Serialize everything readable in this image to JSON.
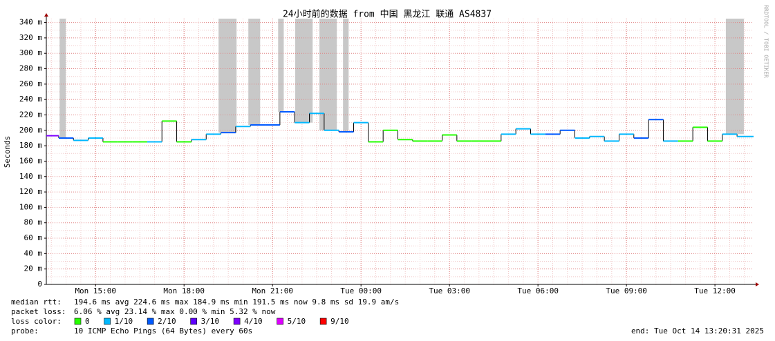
{
  "chart_data": {
    "type": "step",
    "title": "24小时前的数据 from 中国 黑龙江 联通 AS4837",
    "y_label": "Seconds",
    "watermark": "RRDTOOL / TOBI OETIKER",
    "xlim": [
      13.33,
      37.31
    ],
    "xticks": [
      {
        "value": 15,
        "label": "Mon 15:00"
      },
      {
        "value": 18,
        "label": "Mon 18:00"
      },
      {
        "value": 21,
        "label": "Mon 21:00"
      },
      {
        "value": 24,
        "label": "Tue 00:00"
      },
      {
        "value": 27,
        "label": "Tue 03:00"
      },
      {
        "value": 30,
        "label": "Tue 06:00"
      },
      {
        "value": 33,
        "label": "Tue 09:00"
      },
      {
        "value": 36,
        "label": "Tue 12:00"
      }
    ],
    "ylim": [
      0,
      345
    ],
    "yticks": [
      0,
      {
        "value": 20,
        "label": "20 m"
      },
      {
        "value": 40,
        "label": "40 m"
      },
      {
        "value": 60,
        "label": "60 m"
      },
      {
        "value": 80,
        "label": "80 m"
      },
      {
        "value": 100,
        "label": "100 m"
      },
      {
        "value": 120,
        "label": "120 m"
      },
      {
        "value": 140,
        "label": "140 m"
      },
      {
        "value": 160,
        "label": "160 m"
      },
      {
        "value": 180,
        "label": "180 m"
      },
      {
        "value": 200,
        "label": "200 m"
      },
      {
        "value": 220,
        "label": "220 m"
      },
      {
        "value": 240,
        "label": "240 m"
      },
      {
        "value": 260,
        "label": "260 m"
      },
      {
        "value": 280,
        "label": "280 m"
      },
      {
        "value": 300,
        "label": "300 m"
      },
      {
        "value": 320,
        "label": "320 m"
      },
      {
        "value": 340,
        "label": "340 m"
      }
    ],
    "grid": true,
    "x": [
      13.5,
      14,
      14.5,
      15,
      15.5,
      16,
      16.5,
      17,
      17.5,
      18,
      18.5,
      19,
      19.5,
      20,
      20.5,
      21,
      21.5,
      22,
      22.5,
      23,
      23.5,
      24,
      24.5,
      25,
      25.5,
      26,
      26.5,
      27,
      27.5,
      28,
      28.5,
      29,
      29.5,
      30,
      30.5,
      31,
      31.5,
      32,
      32.5,
      33,
      33.5,
      34,
      34.5,
      35,
      35.5,
      36,
      36.5,
      37
    ],
    "values": [
      193,
      190,
      187,
      190,
      185,
      185,
      185,
      185,
      212,
      185,
      188,
      195,
      197,
      205,
      207,
      207,
      224,
      210,
      222,
      200,
      198,
      210,
      185,
      200,
      188,
      186,
      186,
      194,
      186,
      186,
      186,
      195,
      202,
      195,
      195,
      200,
      190,
      192,
      186,
      195,
      190,
      214,
      186,
      186,
      204,
      186,
      195,
      192
    ],
    "point_colors": [
      "#7e00ff",
      "#0059ff",
      "#00b8ff",
      "#00b8ff",
      "#26ff00",
      "#26ff00",
      "#26ff00",
      "#00b8ff",
      "#26ff00",
      "#26ff00",
      "#00b8ff",
      "#00b8ff",
      "#0059ff",
      "#00b8ff",
      "#0059ff",
      "#0059ff",
      "#0059ff",
      "#00b8ff",
      "#00b8ff",
      "#00b8ff",
      "#0059ff",
      "#00b8ff",
      "#26ff00",
      "#26ff00",
      "#26ff00",
      "#26ff00",
      "#26ff00",
      "#26ff00",
      "#26ff00",
      "#26ff00",
      "#26ff00",
      "#00b8ff",
      "#00b8ff",
      "#00b8ff",
      "#0059ff",
      "#0059ff",
      "#00b8ff",
      "#00b8ff",
      "#00b8ff",
      "#00b8ff",
      "#0059ff",
      "#0059ff",
      "#00b8ff",
      "#26ff00",
      "#26ff00",
      "#26ff00",
      "#00b8ff",
      "#00b8ff"
    ],
    "loss_spans": [
      [
        13.78,
        13.99
      ],
      [
        19.17,
        19.78
      ],
      [
        20.18,
        20.58
      ],
      [
        21.19,
        21.38
      ],
      [
        21.77,
        22.36
      ],
      [
        22.59,
        23.18
      ],
      [
        23.39,
        23.58
      ],
      [
        36.37,
        36.98
      ]
    ],
    "stats": [
      {
        "label": "median rtt:",
        "text": "194.6 ms avg  224.6 ms max  184.9 ms min  191.5 ms now  9.8 ms sd  19.9   am/s"
      },
      {
        "label": "packet loss:",
        "text": "6.06 % avg  23.14 % max  0.00 % min  5.32 % now"
      }
    ],
    "loss_legend_label": "loss color:",
    "loss_legend": [
      {
        "label": "0",
        "color": "#26ff00"
      },
      {
        "label": "1/10",
        "color": "#00b8ff"
      },
      {
        "label": "2/10",
        "color": "#0059ff"
      },
      {
        "label": "3/10",
        "color": "#5e00ff"
      },
      {
        "label": "4/10",
        "color": "#7e00ff"
      },
      {
        "label": "5/10",
        "color": "#dd00ff"
      },
      {
        "label": "9/10",
        "color": "#ff0000"
      }
    ],
    "probe_label": "probe:",
    "probe": "10 ICMP Echo Pings (64 Bytes) every 60s",
    "end": "end: Tue Oct 14 13:20:31 2025"
  }
}
